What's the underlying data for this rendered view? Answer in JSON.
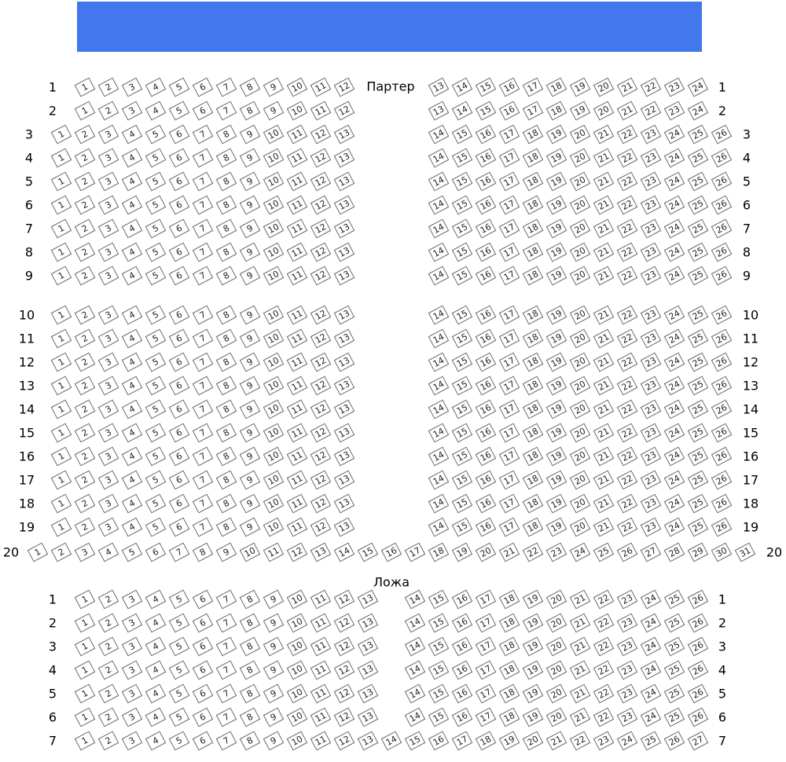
{
  "stage": {
    "color": "#4377ee"
  },
  "sections": [
    {
      "title": "Партер",
      "rows": [
        {
          "label": "1",
          "blocks": [
            [
              1,
              12
            ],
            [
              13,
              24
            ]
          ]
        },
        {
          "label": "2",
          "blocks": [
            [
              1,
              12
            ],
            [
              13,
              24
            ]
          ]
        },
        {
          "label": "3",
          "blocks": [
            [
              1,
              13
            ],
            [
              14,
              26
            ]
          ]
        },
        {
          "label": "4",
          "blocks": [
            [
              1,
              13
            ],
            [
              14,
              26
            ]
          ]
        },
        {
          "label": "5",
          "blocks": [
            [
              1,
              13
            ],
            [
              14,
              26
            ]
          ]
        },
        {
          "label": "6",
          "blocks": [
            [
              1,
              13
            ],
            [
              14,
              26
            ]
          ]
        },
        {
          "label": "7",
          "blocks": [
            [
              1,
              13
            ],
            [
              14,
              26
            ]
          ]
        },
        {
          "label": "8",
          "blocks": [
            [
              1,
              13
            ],
            [
              14,
              26
            ]
          ]
        },
        {
          "label": "9",
          "blocks": [
            [
              1,
              13
            ],
            [
              14,
              26
            ]
          ]
        },
        {
          "label": "10",
          "blocks": [
            [
              1,
              13
            ],
            [
              14,
              26
            ]
          ]
        },
        {
          "label": "11",
          "blocks": [
            [
              1,
              13
            ],
            [
              14,
              26
            ]
          ]
        },
        {
          "label": "12",
          "blocks": [
            [
              1,
              13
            ],
            [
              14,
              26
            ]
          ]
        },
        {
          "label": "13",
          "blocks": [
            [
              1,
              13
            ],
            [
              14,
              26
            ]
          ]
        },
        {
          "label": "14",
          "blocks": [
            [
              1,
              13
            ],
            [
              14,
              26
            ]
          ]
        },
        {
          "label": "15",
          "blocks": [
            [
              1,
              13
            ],
            [
              14,
              26
            ]
          ]
        },
        {
          "label": "16",
          "blocks": [
            [
              1,
              13
            ],
            [
              14,
              26
            ]
          ]
        },
        {
          "label": "17",
          "blocks": [
            [
              1,
              13
            ],
            [
              14,
              26
            ]
          ]
        },
        {
          "label": "18",
          "blocks": [
            [
              1,
              13
            ],
            [
              14,
              26
            ]
          ]
        },
        {
          "label": "19",
          "blocks": [
            [
              1,
              13
            ],
            [
              14,
              26
            ]
          ]
        },
        {
          "label": "20",
          "blocks": [
            [
              1,
              31
            ]
          ]
        }
      ]
    },
    {
      "title": "Ложа",
      "rows": [
        {
          "label": "1",
          "blocks": [
            [
              1,
              13
            ],
            [
              14,
              26
            ]
          ]
        },
        {
          "label": "2",
          "blocks": [
            [
              1,
              13
            ],
            [
              14,
              26
            ]
          ]
        },
        {
          "label": "3",
          "blocks": [
            [
              1,
              13
            ],
            [
              14,
              26
            ]
          ]
        },
        {
          "label": "4",
          "blocks": [
            [
              1,
              13
            ],
            [
              14,
              26
            ]
          ]
        },
        {
          "label": "5",
          "blocks": [
            [
              1,
              13
            ],
            [
              14,
              26
            ]
          ]
        },
        {
          "label": "6",
          "blocks": [
            [
              1,
              13
            ],
            [
              14,
              26
            ]
          ]
        },
        {
          "label": "7",
          "blocks": [
            [
              1,
              27
            ]
          ]
        }
      ]
    }
  ]
}
